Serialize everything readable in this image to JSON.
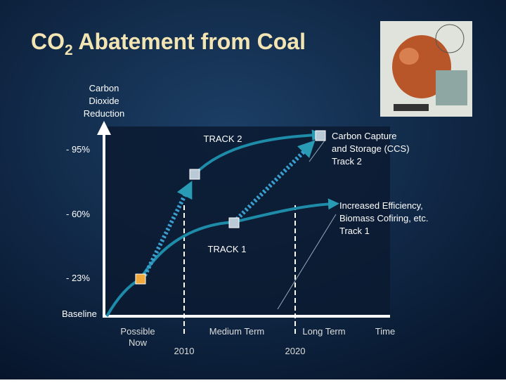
{
  "title": {
    "main": "CO",
    "subscript": "2",
    "rest": " Abatement from Coal"
  },
  "y_axis": {
    "label_lines": [
      "Carbon",
      "Dioxide",
      "Reduction"
    ],
    "levels": [
      "- 95%",
      "- 60%",
      "- 23%",
      "Baseline"
    ]
  },
  "x_axis": {
    "phases": [
      [
        "Possible",
        "Now"
      ],
      [
        "Medium Term"
      ],
      [
        "Long Term"
      ],
      [
        "Time"
      ]
    ],
    "years": [
      "2010",
      "2020"
    ]
  },
  "tracks": {
    "track2": "TRACK 2",
    "track1": "TRACK 1"
  },
  "annotations": {
    "ccs": [
      "Carbon Capture",
      "and Storage (CCS)",
      "Track 2"
    ],
    "efficiency": [
      "Increased Efficiency,",
      "Biomass Cofiring, etc.",
      "Track 1"
    ]
  }
}
